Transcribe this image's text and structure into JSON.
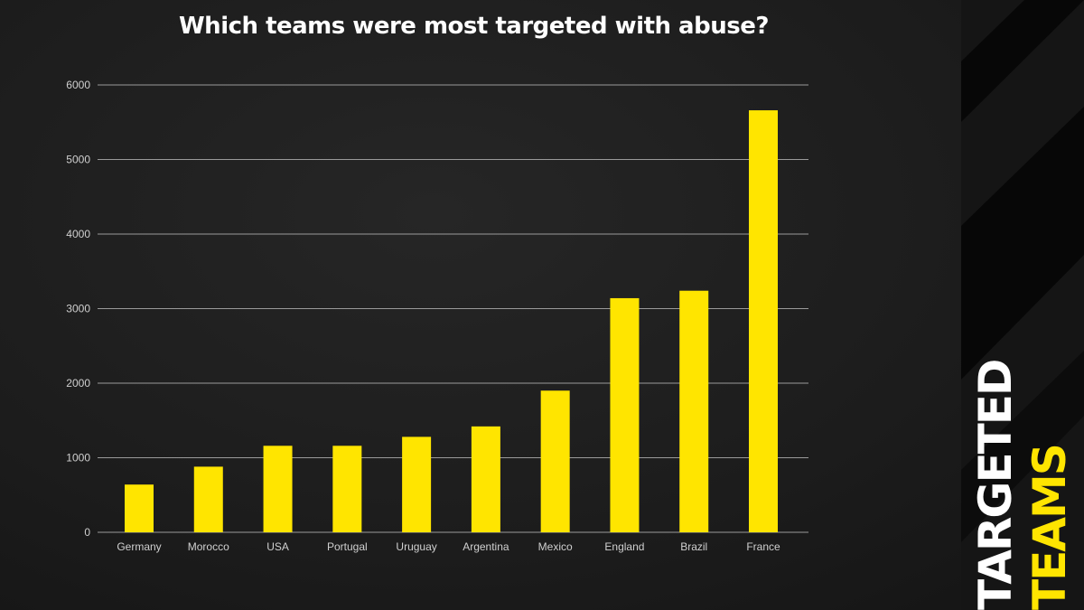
{
  "title": "Which teams were most targeted with abuse?",
  "side_banner": {
    "line1": "TARGETED",
    "line2": "TEAMS"
  },
  "colors": {
    "bar": "#ffe500",
    "accent": "#ffe500",
    "grid": "#9a9a9a",
    "tick_text": "#d0d0d0",
    "background": "#1f1f1f"
  },
  "chart_data": {
    "type": "bar",
    "title": "Which teams were most targeted with abuse?",
    "xlabel": "",
    "ylabel": "",
    "categories": [
      "Germany",
      "Morocco",
      "USA",
      "Portugal",
      "Uruguay",
      "Argentina",
      "Mexico",
      "England",
      "Brazil",
      "France"
    ],
    "values": [
      640,
      880,
      1160,
      1160,
      1280,
      1420,
      1900,
      3140,
      3240,
      5660
    ],
    "ylim": [
      0,
      6000
    ],
    "yticks": [
      0,
      1000,
      2000,
      3000,
      4000,
      5000,
      6000
    ],
    "grid": true,
    "legend": false
  }
}
